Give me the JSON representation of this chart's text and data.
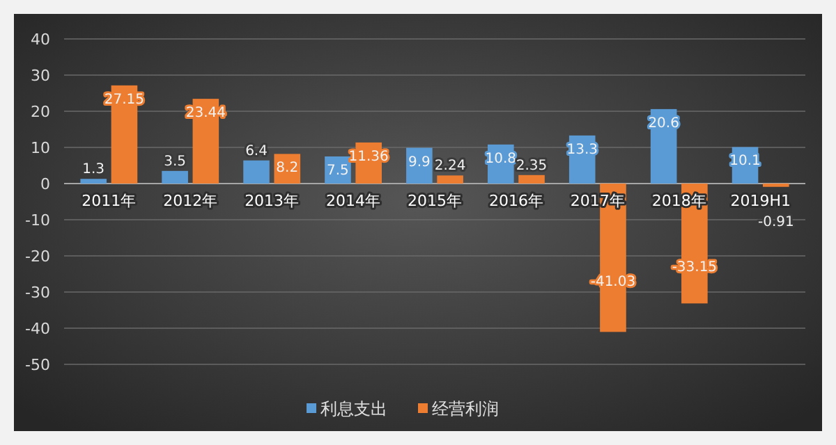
{
  "chart_data": {
    "type": "bar",
    "categories": [
      "2011年",
      "2012年",
      "2013年",
      "2014年",
      "2015年",
      "2016年",
      "2017年",
      "2018年",
      "2019H1"
    ],
    "series": [
      {
        "name": "利息支出",
        "color": "#5b9bd5",
        "values": [
          1.3,
          3.5,
          6.4,
          7.5,
          9.9,
          10.8,
          13.3,
          20.6,
          10.1
        ]
      },
      {
        "name": "经营利润",
        "color": "#ed7d31",
        "values": [
          27.15,
          23.44,
          8.2,
          11.36,
          2.24,
          2.35,
          -41.03,
          -33.15,
          -0.91
        ]
      }
    ],
    "ylim": [
      -50,
      40
    ],
    "yticks": [
      -50,
      -40,
      -30,
      -20,
      -10,
      0,
      10,
      20,
      30,
      40
    ],
    "grid": "y",
    "legend": "bottom",
    "data_labels": true
  }
}
